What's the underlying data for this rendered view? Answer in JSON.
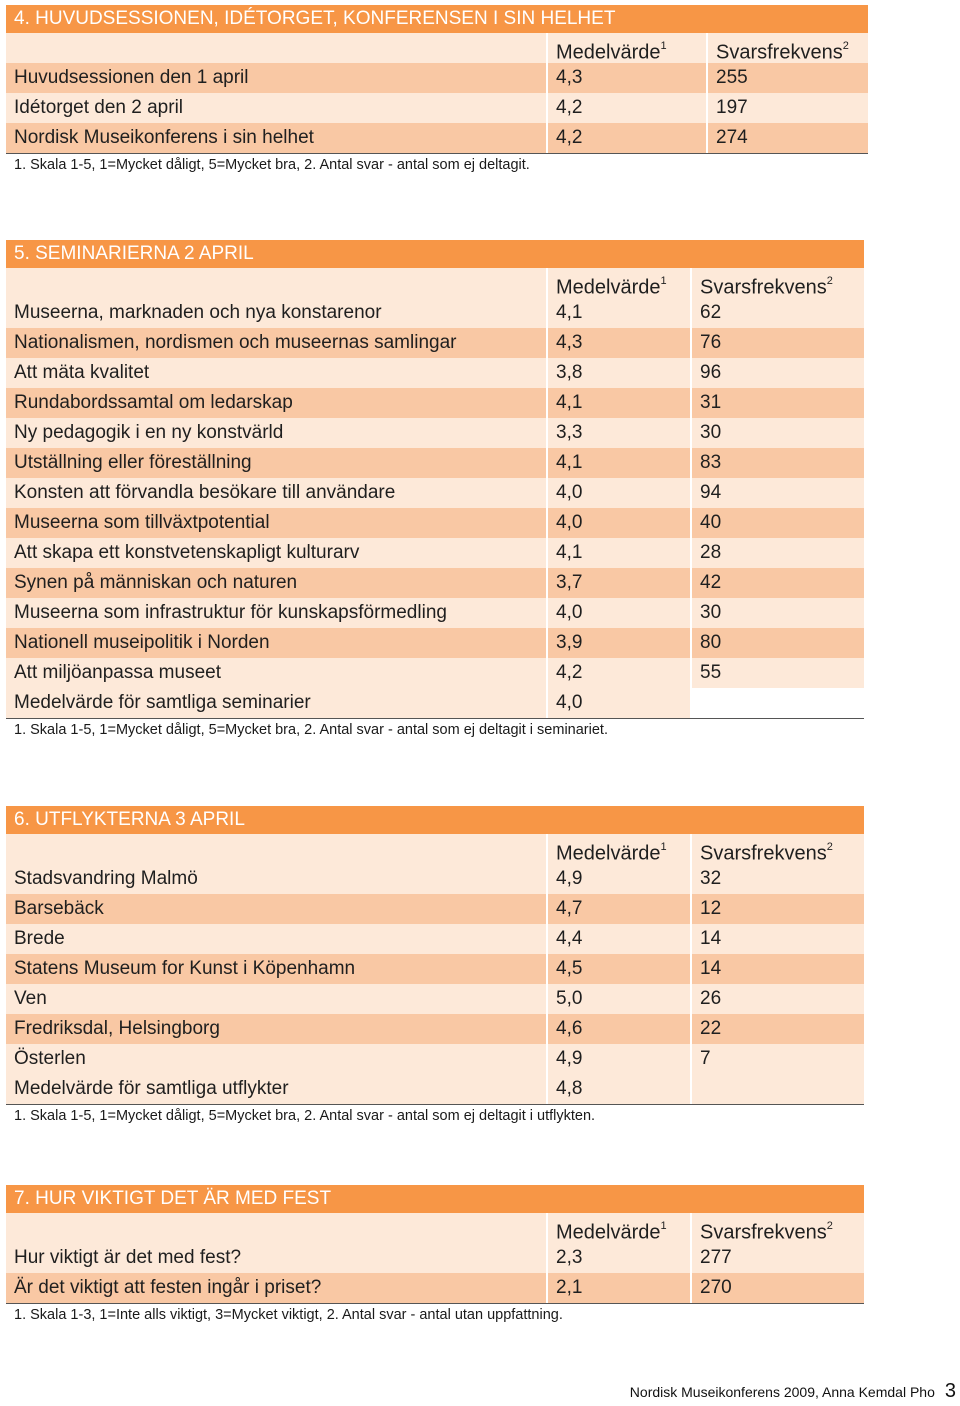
{
  "s4": {
    "title": "4. HUVUDSESSIONEN, IDÉTORGET, KONFERENSEN I SIN HELHET",
    "col_mean": "Medelvärde",
    "col_mean_sup": "1",
    "col_freq": "Svarsfrekvens",
    "col_freq_sup": "2",
    "rows": [
      {
        "label": "Huvudsessionen den 1 april",
        "mean": "4,3",
        "freq": "255"
      },
      {
        "label": "Idétorget den 2 april",
        "mean": "4,2",
        "freq": "197"
      },
      {
        "label": "Nordisk Museikonferens i sin helhet",
        "mean": "4,2",
        "freq": "274"
      }
    ],
    "note": "1. Skala 1-5, 1=Mycket dåligt, 5=Mycket bra, 2. Antal svar - antal som ej deltagit."
  },
  "s5": {
    "title": "5. SEMINARIERNA 2 APRIL",
    "col_mean": "Medelvärde",
    "col_mean_sup": "1",
    "col_freq": "Svarsfrekvens",
    "col_freq_sup": "2",
    "rows": [
      {
        "label": "Museerna, marknaden och nya konstarenor",
        "mean": "4,1",
        "freq": "62"
      },
      {
        "label": "Nationalismen, nordismen och museernas samlingar",
        "mean": "4,3",
        "freq": "76"
      },
      {
        "label": "Att mäta kvalitet",
        "mean": "3,8",
        "freq": "96"
      },
      {
        "label": "Rundabordssamtal om ledarskap",
        "mean": "4,1",
        "freq": "31"
      },
      {
        "label": "Ny pedagogik i en ny konstvärld",
        "mean": "3,3",
        "freq": "30"
      },
      {
        "label": "Utställning eller föreställning",
        "mean": "4,1",
        "freq": "83"
      },
      {
        "label": "Konsten att förvandla besökare till användare",
        "mean": "4,0",
        "freq": "94"
      },
      {
        "label": "Museerna som tillväxtpotential",
        "mean": "4,0",
        "freq": "40"
      },
      {
        "label": "Att skapa ett konstvetenskapligt kulturarv",
        "mean": "4,1",
        "freq": "28"
      },
      {
        "label": "Synen på människan och naturen",
        "mean": "3,7",
        "freq": "42"
      },
      {
        "label": "Museerna som infrastruktur för kunskapsförmedling",
        "mean": "4,0",
        "freq": "30"
      },
      {
        "label": "Nationell museipolitik i Norden",
        "mean": "3,9",
        "freq": "80"
      },
      {
        "label": "Att miljöanpassa museet",
        "mean": "4,2",
        "freq": "55"
      }
    ],
    "total_label": "Medelvärde för samtliga seminarier",
    "total_mean": "4,0",
    "note": "1. Skala 1-5, 1=Mycket dåligt, 5=Mycket bra, 2. Antal svar - antal som ej deltagit i seminariet."
  },
  "s6": {
    "title": "6. UTFLYKTERNA 3 APRIL",
    "col_mean": "Medelvärde",
    "col_mean_sup": "1",
    "col_freq": "Svarsfrekvens",
    "col_freq_sup": "2",
    "rows": [
      {
        "label": "Stadsvandring Malmö",
        "mean": "4,9",
        "freq": "32"
      },
      {
        "label": "Barsebäck",
        "mean": "4,7",
        "freq": "12"
      },
      {
        "label": "Brede",
        "mean": "4,4",
        "freq": "14"
      },
      {
        "label": "Statens Museum for Kunst i Köpenhamn",
        "mean": "4,5",
        "freq": "14"
      },
      {
        "label": "Ven",
        "mean": "5,0",
        "freq": "26"
      },
      {
        "label": "Fredriksdal, Helsingborg",
        "mean": "4,6",
        "freq": "22"
      },
      {
        "label": "Österlen",
        "mean": "4,9",
        "freq": "7"
      }
    ],
    "total_label": "Medelvärde för samtliga utflykter",
    "total_mean": "4,8",
    "note": "1. Skala 1-5, 1=Mycket dåligt, 5=Mycket bra, 2. Antal svar - antal som ej deltagit i utflykten."
  },
  "s7": {
    "title": "7. HUR VIKTIGT DET ÄR MED FEST",
    "col_mean": "Medelvärde",
    "col_mean_sup": "1",
    "col_freq": "Svarsfrekvens",
    "col_freq_sup": "2",
    "rows": [
      {
        "label": "Hur viktigt är det med fest?",
        "mean": "2,3",
        "freq": "277"
      },
      {
        "label": "Är det viktigt att festen ingår i priset?",
        "mean": "2,1",
        "freq": "270"
      }
    ],
    "note": "1. Skala 1-3, 1=Inte alls viktigt, 3=Mycket viktigt, 2. Antal svar - antal utan uppfattning."
  },
  "footer": {
    "text": "Nordisk Museikonferens 2009, Anna Kemdal Pho",
    "page": "3"
  }
}
